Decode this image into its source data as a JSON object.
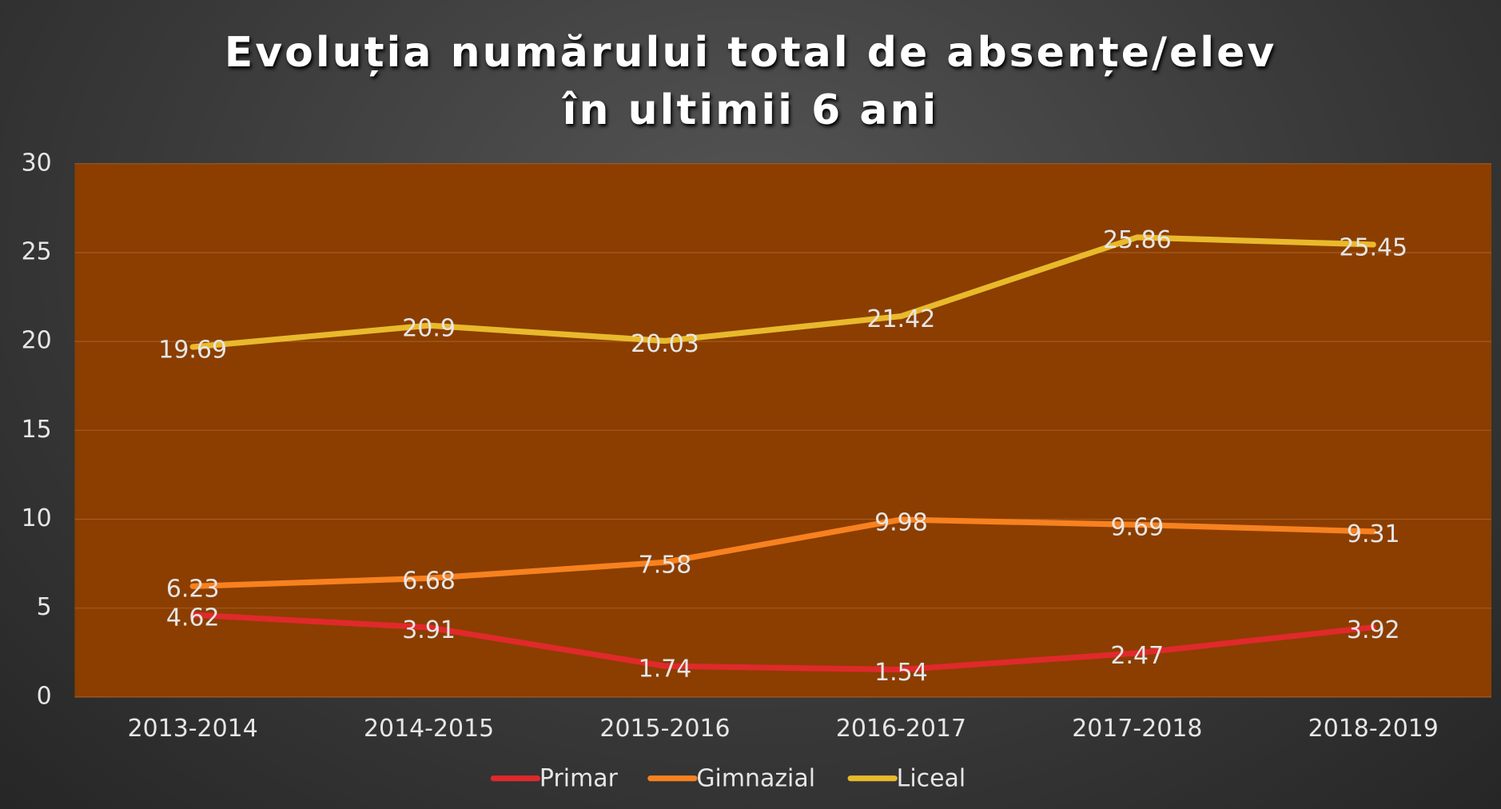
{
  "chart_data": {
    "type": "line",
    "title": "Evoluția numărului total de absențe/elev\nîn ultimii 6 ani",
    "categories": [
      "2013-2014",
      "2014-2015",
      "2015-2016",
      "2016-2017",
      "2017-2018",
      "2018-2019"
    ],
    "series": [
      {
        "name": "Primar",
        "color": "#e0292b",
        "values": [
          4.62,
          3.91,
          1.74,
          1.54,
          2.47,
          3.92
        ]
      },
      {
        "name": "Gimnazial",
        "color": "#f7811f",
        "values": [
          6.23,
          6.68,
          7.58,
          9.98,
          9.69,
          9.31
        ]
      },
      {
        "name": "Liceal",
        "color": "#e9b92c",
        "values": [
          19.69,
          20.9,
          20.03,
          21.42,
          25.86,
          25.45
        ]
      }
    ],
    "ylim": [
      0,
      30
    ],
    "yticks": [
      0,
      5,
      10,
      15,
      20,
      25,
      30
    ],
    "grid": true,
    "legend": "bottom"
  }
}
